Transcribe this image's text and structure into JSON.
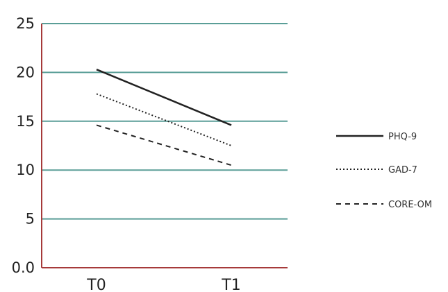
{
  "chart_data": {
    "type": "line",
    "title": "",
    "xlabel": "",
    "ylabel": "",
    "categories": [
      "T0",
      "T1"
    ],
    "ylim": [
      0,
      25
    ],
    "yticks": [
      0,
      5,
      10,
      15,
      20,
      25
    ],
    "ytick_labels": [
      "0.0",
      "5",
      "10",
      "15",
      "20",
      "25"
    ],
    "grid": true,
    "legend_position": "right",
    "series": [
      {
        "name": "PHQ-9",
        "values": [
          20.3,
          14.6
        ],
        "style": "solid"
      },
      {
        "name": "GAD-7",
        "values": [
          17.8,
          12.5
        ],
        "style": "dotted"
      },
      {
        "name": "CORE-OM",
        "values": [
          14.6,
          10.5
        ],
        "style": "dashed"
      }
    ],
    "colors": {
      "gridline": "#5a9e97",
      "axis": "#a63a3a",
      "series": "#222222"
    }
  }
}
